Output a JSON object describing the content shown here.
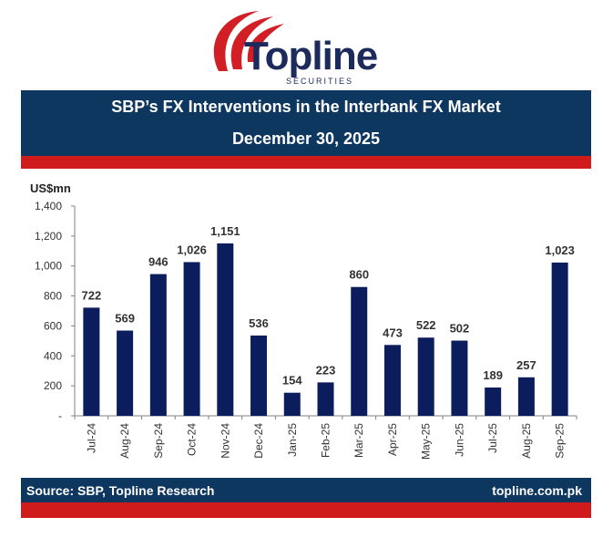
{
  "brand": {
    "name": "Topline",
    "tagline": "SECURITIES",
    "accent": "#d21f26",
    "navy": "#1c2a5c"
  },
  "header": {
    "title": "SBP’s FX Interventions in the Interbank FX Market",
    "date": "December 30, 2025"
  },
  "footer": {
    "source": "Source: SBP, Topline Research",
    "website": "topline.com.pk"
  },
  "chart_data": {
    "type": "bar",
    "ylabel": "US$mn",
    "categories": [
      "Jul-24",
      "Aug-24",
      "Sep-24",
      "Oct-24",
      "Nov-24",
      "Dec-24",
      "Jan-25",
      "Feb-25",
      "Mar-25",
      "Apr-25",
      "May-25",
      "Jun-25",
      "Jul-25",
      "Aug-25",
      "Sep-25"
    ],
    "values": [
      722,
      569,
      946,
      1026,
      1151,
      536,
      154,
      223,
      860,
      473,
      522,
      502,
      189,
      257,
      1023
    ],
    "data_labels": [
      "722",
      "569",
      "946",
      "1,026",
      "1,151",
      "536",
      "154",
      "223",
      "860",
      "473",
      "522",
      "502",
      "189",
      "257",
      "1,023"
    ],
    "ylim": [
      0,
      1400
    ],
    "yticks": [
      0,
      200,
      400,
      600,
      800,
      1000,
      1200,
      1400
    ],
    "ytick_labels": [
      "-",
      "200",
      "400",
      "600",
      "800",
      "1,000",
      "1,200",
      "1,400"
    ],
    "bar_color": "#0c1d5e",
    "grid": false,
    "legend": "none"
  }
}
